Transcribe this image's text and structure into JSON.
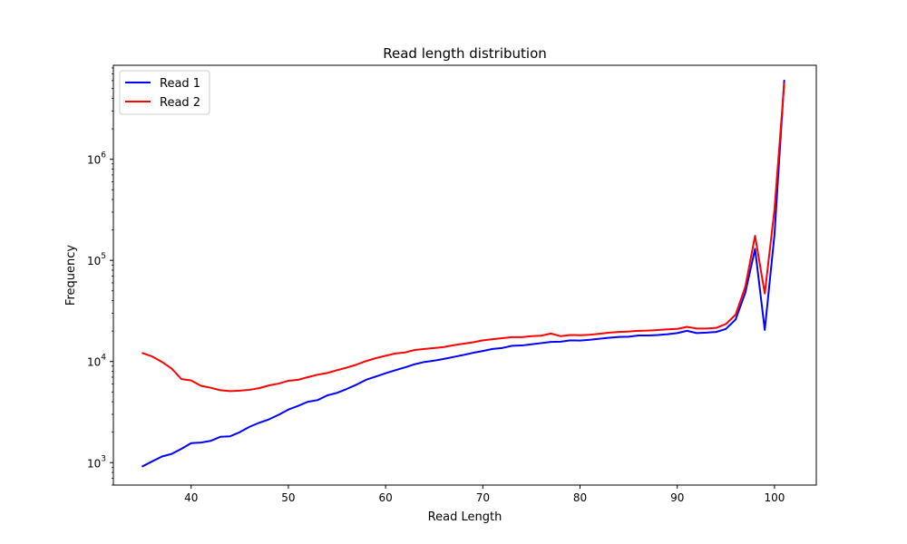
{
  "chart_data": {
    "type": "line",
    "title": "Read length distribution",
    "xlabel": "Read Length",
    "ylabel": "Frequency",
    "xlim": [
      32,
      104.3
    ],
    "ylim": [
      600,
      8500000
    ],
    "yscale": "log",
    "x_ticks": [
      40,
      50,
      60,
      70,
      80,
      90,
      100
    ],
    "y_ticks": [
      {
        "value": 1000,
        "base": "10",
        "exp": "3"
      },
      {
        "value": 10000,
        "base": "10",
        "exp": "4"
      },
      {
        "value": 100000,
        "base": "10",
        "exp": "5"
      },
      {
        "value": 1000000,
        "base": "10",
        "exp": "6"
      }
    ],
    "grid": false,
    "legend_position": "top-left",
    "x": [
      35,
      36,
      37,
      38,
      39,
      40,
      41,
      42,
      43,
      44,
      45,
      46,
      47,
      48,
      49,
      50,
      51,
      52,
      53,
      54,
      55,
      56,
      57,
      58,
      59,
      60,
      61,
      62,
      63,
      64,
      65,
      66,
      67,
      68,
      69,
      70,
      71,
      72,
      73,
      74,
      75,
      76,
      77,
      78,
      79,
      80,
      81,
      82,
      83,
      84,
      85,
      86,
      87,
      88,
      89,
      90,
      91,
      92,
      93,
      94,
      95,
      96,
      97,
      98,
      99,
      100,
      101
    ],
    "series": [
      {
        "name": "Read 1",
        "color": "#0000ff",
        "values": [
          920,
          1030,
          1150,
          1220,
          1370,
          1560,
          1580,
          1640,
          1800,
          1820,
          2000,
          2260,
          2480,
          2680,
          2970,
          3350,
          3640,
          4000,
          4150,
          4620,
          4900,
          5350,
          5900,
          6600,
          7100,
          7650,
          8200,
          8750,
          9400,
          9900,
          10200,
          10600,
          11100,
          11600,
          12200,
          12700,
          13300,
          13600,
          14300,
          14400,
          14800,
          15200,
          15600,
          15700,
          16200,
          16100,
          16400,
          16800,
          17200,
          17500,
          17600,
          18100,
          18100,
          18300,
          18600,
          19100,
          20100,
          19100,
          19300,
          19600,
          21000,
          26000,
          48000,
          130000,
          20500,
          180000,
          6000000
        ]
      },
      {
        "name": "Read 2",
        "color": "#ff0000",
        "values": [
          12100,
          11200,
          9900,
          8500,
          6700,
          6500,
          5750,
          5500,
          5200,
          5100,
          5150,
          5250,
          5450,
          5800,
          6050,
          6450,
          6600,
          7000,
          7400,
          7700,
          8200,
          8700,
          9300,
          10100,
          10800,
          11400,
          12000,
          12300,
          13000,
          13300,
          13600,
          13900,
          14500,
          15000,
          15500,
          16200,
          16600,
          17000,
          17400,
          17400,
          17800,
          18000,
          18900,
          17800,
          18300,
          18200,
          18400,
          18800,
          19300,
          19600,
          19800,
          20100,
          20200,
          20500,
          20800,
          21000,
          22000,
          21200,
          21200,
          21500,
          23500,
          29000,
          55000,
          175000,
          47000,
          320000,
          5600000
        ]
      }
    ]
  }
}
